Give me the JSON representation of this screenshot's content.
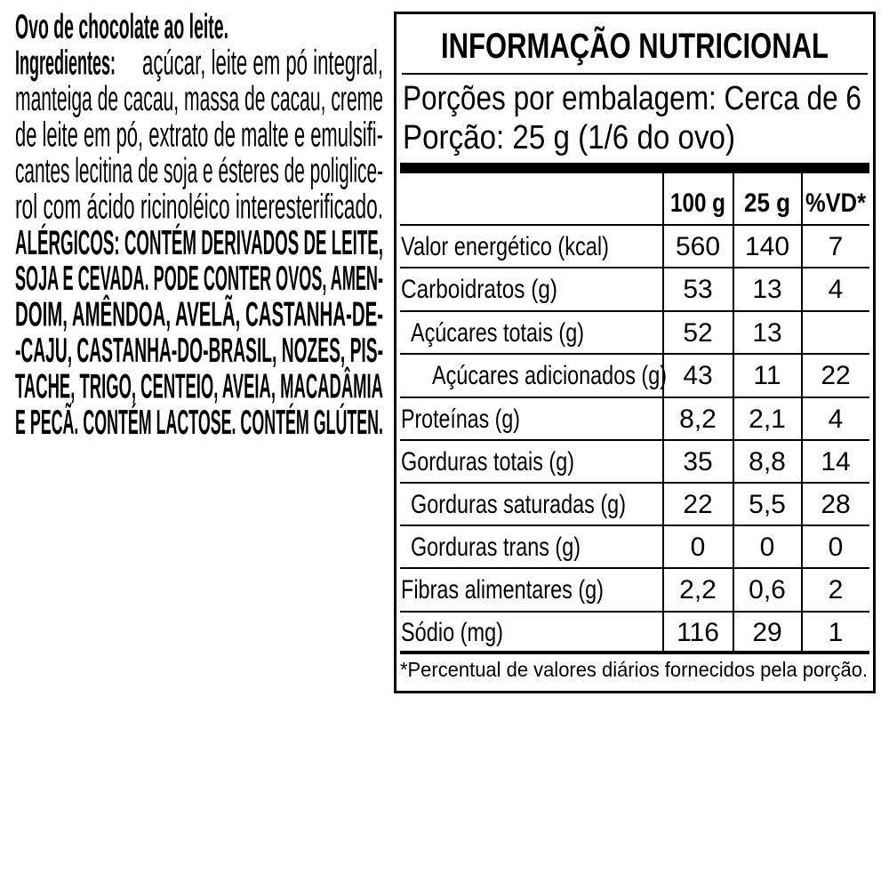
{
  "product": {
    "name_line": "Ovo de chocolate ao leite.",
    "ingredients_label": "Ingredientes:",
    "ingredients_lines": {
      "l2": "açúcar, leite em pó integral,",
      "l3": "manteiga de cacau, massa de cacau, creme",
      "l4": "de leite em pó, extrato de malte e emulsifi-",
      "l5": "cantes lecitina de soja e ésteres de poliglice-",
      "l6": "rol com ácido ricinoléico interesterificado."
    },
    "allergen_lines": {
      "l7": "ALÉRGICOS: CONTÉM DERIVADOS DE LEITE,",
      "l8": "SOJA E CEVADA. PODE CONTER OVOS, AMEN-",
      "l9": "DOIM, AMÊNDOA, AVELÃ, CASTANHA-DE-",
      "l10": "-CAJU, CASTANHA-DO-BRASIL, NOZES, PIS-",
      "l11": "TACHE, TRIGO, CENTEIO, AVEIA, MACADÂMIA",
      "l12": "E PECÃ. CONTÉM LACTOSE. CONTÉM GLÚTEN."
    }
  },
  "nutrition_table": {
    "title": "INFORMAÇÃO NUTRICIONAL",
    "servings_line": "Porções por embalagem: Cerca de 6",
    "portion_line": "Porção: 25 g (1/6 do ovo)",
    "columns": {
      "col_100g": "100 g",
      "col_25g": "25 g",
      "col_vd": "%VD*"
    },
    "rows": [
      {
        "label": "Valor energético (kcal)",
        "per_100g": "560",
        "per_25g": "140",
        "vd": "7"
      },
      {
        "label": "Carboidratos (g)",
        "per_100g": "53",
        "per_25g": "13",
        "vd": "4"
      },
      {
        "label": "Açúcares totais (g)",
        "per_100g": "52",
        "per_25g": "13",
        "vd": ""
      },
      {
        "label": "Açúcares adicionados (g)",
        "per_100g": "43",
        "per_25g": "11",
        "vd": "22"
      },
      {
        "label": "Proteínas (g)",
        "per_100g": "8,2",
        "per_25g": "2,1",
        "vd": "4"
      },
      {
        "label": "Gorduras totais (g)",
        "per_100g": "35",
        "per_25g": "8,8",
        "vd": "14"
      },
      {
        "label": "Gorduras saturadas (g)",
        "per_100g": "22",
        "per_25g": "5,5",
        "vd": "28"
      },
      {
        "label": "Gorduras trans (g)",
        "per_100g": "0",
        "per_25g": "0",
        "vd": "0"
      },
      {
        "label": "Fibras alimentares (g)",
        "per_100g": "2,2",
        "per_25g": "0,6",
        "vd": "2"
      },
      {
        "label": "Sódio (mg)",
        "per_100g": "116",
        "per_25g": "29",
        "vd": "1"
      }
    ],
    "footnote": "*Percentual de valores diários fornecidos pela porção."
  },
  "colors": {
    "ink": "#000000",
    "background": "#ffffff"
  }
}
